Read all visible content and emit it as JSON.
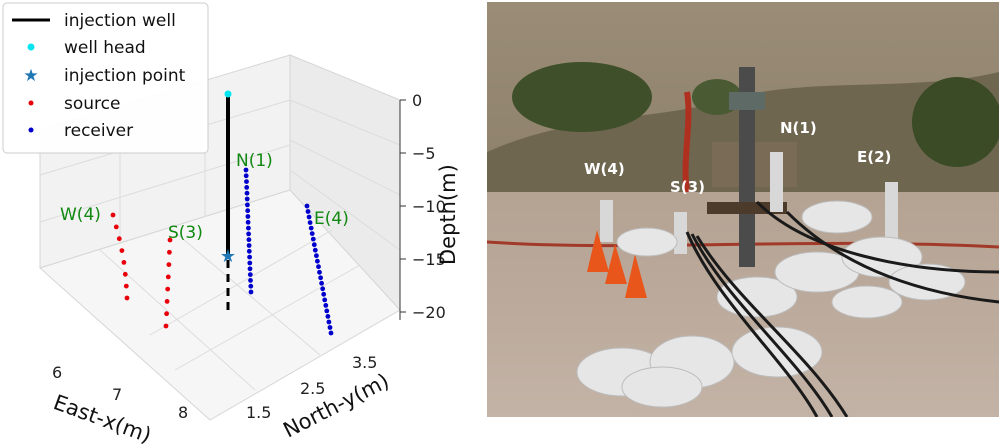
{
  "chart_data": {
    "type": "scatter3d",
    "xlabel": "East-x(m)",
    "ylabel": "North-y(m)",
    "zlabel": "Depth(m)",
    "x_ticks": [
      "6",
      "7",
      "8"
    ],
    "y_ticks": [
      "1.5",
      "2.5",
      "3.5"
    ],
    "z_ticks": [
      "0",
      "−5",
      "−10",
      "−15",
      "−20"
    ],
    "xlim": [
      5.7,
      8.3
    ],
    "ylim": [
      1.3,
      4.0
    ],
    "zlim": [
      -22,
      1
    ],
    "legend": {
      "placement": "top-left",
      "entries": [
        {
          "label": "injection well",
          "color": "#000000",
          "marker": "line"
        },
        {
          "label": "well head",
          "color": "#00e5ee",
          "marker": "dot"
        },
        {
          "label": "injection point",
          "color": "#1f77b4",
          "marker": "star"
        },
        {
          "label": "source",
          "color": "#e8000b",
          "marker": "dot"
        },
        {
          "label": "receiver",
          "color": "#0000cc",
          "marker": "dot"
        }
      ]
    },
    "injection_well": {
      "depth_top": 0,
      "depth_solid_bottom": -15,
      "depth_dashed_bottom": -20
    },
    "well_head": {
      "depth": 0
    },
    "injection_point": {
      "depth": -15
    },
    "series": [
      {
        "name": "W(4)",
        "kind": "source",
        "count": 8,
        "depth_top": -10,
        "depth_bottom": -18
      },
      {
        "name": "S(3)",
        "kind": "source",
        "count": 8,
        "depth_top": -13,
        "depth_bottom": -21
      },
      {
        "name": "N(1)",
        "kind": "receiver",
        "count": 22,
        "depth_top": -6.5,
        "depth_bottom": -18
      },
      {
        "name": "E(4)",
        "kind": "receiver",
        "count": 24,
        "depth_top": -10,
        "depth_bottom": -22
      }
    ]
  },
  "photo": {
    "labels": [
      "N(1)",
      "E(2)",
      "W(4)",
      "S(3)"
    ],
    "colors": {
      "sky_hill": "#8a7a62",
      "ground": "#a69487",
      "bag": "#e6e6e6",
      "cone": "#e8561c"
    }
  }
}
